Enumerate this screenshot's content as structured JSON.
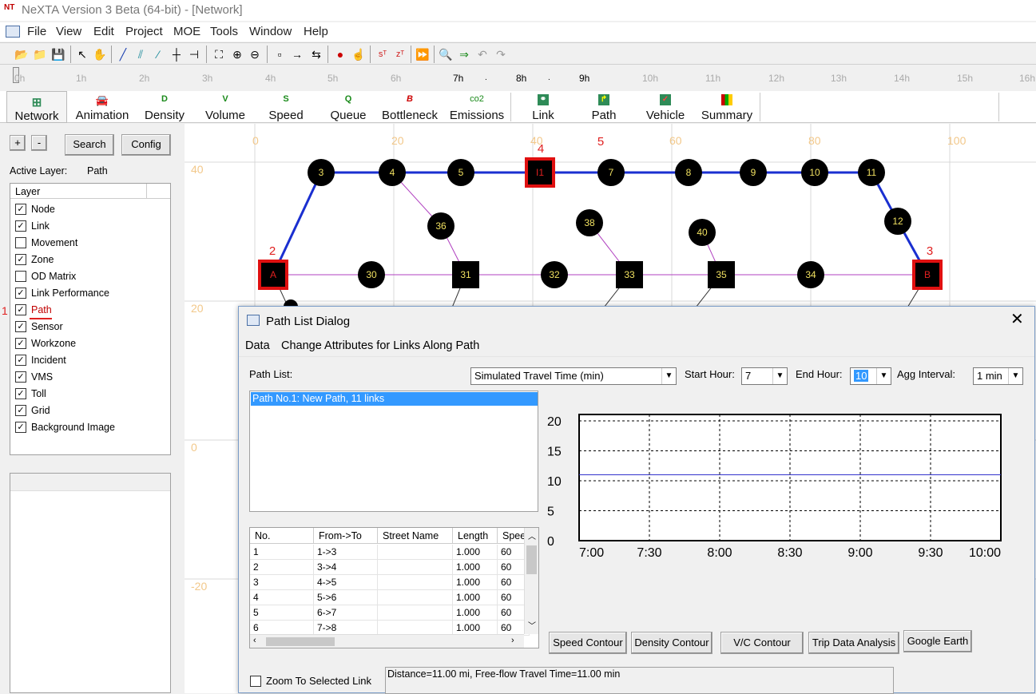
{
  "window": {
    "logo": "NT",
    "title": "NeXTA Version 3 Beta (64-bit) - [Network]"
  },
  "menu": [
    "File",
    "View",
    "Edit",
    "Project",
    "MOE",
    "Tools",
    "Window",
    "Help"
  ],
  "timeline": {
    "hours": [
      "0h",
      "1h",
      "2h",
      "3h",
      "4h",
      "5h",
      "6h",
      "7h",
      "8h",
      "9h",
      "10h",
      "11h",
      "12h",
      "13h",
      "14h",
      "15h",
      "16h"
    ],
    "highlighted": [
      "7h",
      "8h",
      "9h"
    ]
  },
  "moe_tabs": [
    {
      "label": "Network",
      "icon": "grid-icon",
      "color": "#2e8b57"
    },
    {
      "label": "Animation",
      "icon": "car-icon",
      "color": "#2e8b57"
    },
    {
      "label": "Density",
      "icon_text": "D",
      "color": "#1a8a1a"
    },
    {
      "label": "Volume",
      "icon_text": "V",
      "color": "#1a8a1a"
    },
    {
      "label": "Speed",
      "icon_text": "S",
      "color": "#1a8a1a"
    },
    {
      "label": "Queue",
      "icon_text": "Q",
      "color": "#1a8a1a"
    },
    {
      "label": "Bottleneck",
      "icon_text": "B",
      "color": "#cc0000"
    },
    {
      "label": "Emissions",
      "icon_text": "co2",
      "color": "#1a8a1a"
    },
    {
      "label": "Link",
      "icon": "link-icon",
      "color": "#2e8b57"
    },
    {
      "label": "Path",
      "icon": "path-icon",
      "color": "#2e8b57"
    },
    {
      "label": "Vehicle",
      "icon": "vehicle-icon",
      "color": "#2e8b57"
    },
    {
      "label": "Summary",
      "icon": "summary-icon",
      "color": "#c0a000"
    }
  ],
  "left": {
    "plus": "+",
    "minus": "-",
    "search": "Search",
    "config": "Config",
    "active_layer_label": "Active Layer:",
    "active_layer_value": "Path",
    "layer_header": "Layer",
    "layers": [
      {
        "label": "Node",
        "checked": true
      },
      {
        "label": "Link",
        "checked": true
      },
      {
        "label": "Movement",
        "checked": false
      },
      {
        "label": "Zone",
        "checked": true
      },
      {
        "label": "OD Matrix",
        "checked": false
      },
      {
        "label": "Link Performance",
        "checked": true
      },
      {
        "label": "Path",
        "checked": true
      },
      {
        "label": "Sensor",
        "checked": true
      },
      {
        "label": "Workzone",
        "checked": true
      },
      {
        "label": "Incident",
        "checked": true
      },
      {
        "label": "VMS",
        "checked": true
      },
      {
        "label": "Toll",
        "checked": true
      },
      {
        "label": "Grid",
        "checked": true
      },
      {
        "label": "Background Image",
        "checked": true
      }
    ]
  },
  "annotations": [
    "1",
    "2",
    "3",
    "4",
    "5"
  ],
  "map": {
    "x_ticks": [
      "0",
      "20",
      "40",
      "60",
      "80",
      "100"
    ],
    "y_ticks": [
      "40",
      "20",
      "0",
      "-20"
    ],
    "nodes": [
      {
        "id": "3",
        "shape": "circle"
      },
      {
        "id": "4",
        "shape": "circle"
      },
      {
        "id": "5",
        "shape": "circle"
      },
      {
        "id": "I1",
        "shape": "square"
      },
      {
        "id": "7",
        "shape": "circle"
      },
      {
        "id": "8",
        "shape": "circle"
      },
      {
        "id": "9",
        "shape": "circle"
      },
      {
        "id": "10",
        "shape": "circle"
      },
      {
        "id": "11",
        "shape": "circle"
      },
      {
        "id": "12",
        "shape": "circle"
      },
      {
        "id": "36",
        "shape": "circle"
      },
      {
        "id": "38",
        "shape": "circle"
      },
      {
        "id": "40",
        "shape": "circle"
      },
      {
        "id": "A",
        "shape": "square"
      },
      {
        "id": "30",
        "shape": "circle"
      },
      {
        "id": "31",
        "shape": "square"
      },
      {
        "id": "32",
        "shape": "circle"
      },
      {
        "id": "33",
        "shape": "square"
      },
      {
        "id": "35",
        "shape": "square"
      },
      {
        "id": "34",
        "shape": "circle"
      },
      {
        "id": "B",
        "shape": "square"
      }
    ]
  },
  "dialog": {
    "title": "Path List Dialog",
    "menu": [
      "Data",
      "Change Attributes for Links Along Path"
    ],
    "path_list_label": "Path List:",
    "moe_select": "Simulated Travel Time (min)",
    "start_hour_label": "Start Hour:",
    "start_hour": "7",
    "end_hour_label": "End Hour:",
    "end_hour": "10",
    "agg_label": "Agg Interval:",
    "agg": "1 min",
    "paths": [
      "Path No.1: New Path, 11 links"
    ],
    "table": {
      "headers": [
        "No.",
        "From->To",
        "Street Name",
        "Length",
        "Spee"
      ],
      "rows": [
        [
          "1",
          "1->3",
          "",
          "1.000",
          "60"
        ],
        [
          "2",
          "3->4",
          "",
          "1.000",
          "60"
        ],
        [
          "3",
          "4->5",
          "",
          "1.000",
          "60"
        ],
        [
          "4",
          "5->6",
          "",
          "1.000",
          "60"
        ],
        [
          "5",
          "6->7",
          "",
          "1.000",
          "60"
        ],
        [
          "6",
          "7->8",
          "",
          "1.000",
          "60"
        ]
      ]
    },
    "buttons": [
      "Speed Contour",
      "Density Contour",
      "V/C Contour",
      "Trip Data Analysis",
      "Google Earth"
    ],
    "zoom_label": "Zoom To Selected Link",
    "status": "Distance=11.00 mi, Free-flow Travel Time=11.00 min"
  },
  "chart_data": {
    "type": "line",
    "x": [
      "7:00",
      "7:30",
      "8:00",
      "8:30",
      "9:00",
      "9:30",
      "10:00"
    ],
    "yticks": [
      "20",
      "15",
      "10",
      "5",
      "0"
    ],
    "ylim": [
      0,
      20
    ],
    "series": [
      {
        "values": [
          11,
          11,
          11,
          11,
          11,
          11,
          11
        ]
      }
    ],
    "color": "#3333cc",
    "grid": true
  }
}
